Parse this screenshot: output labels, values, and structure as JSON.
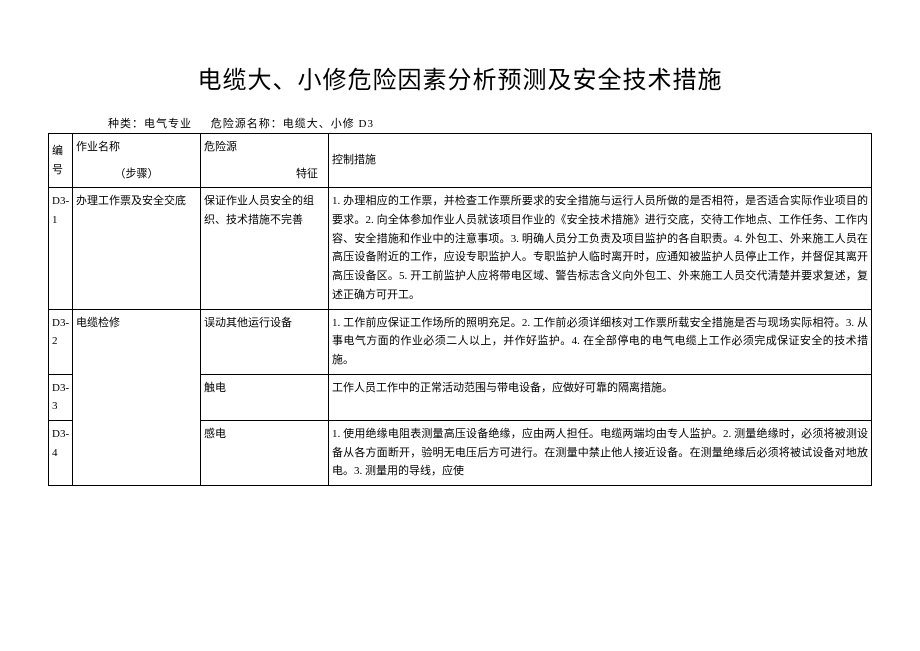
{
  "title": "电缆大、小修危险因素分析预测及安全技术措施",
  "meta_category_label": "种类：",
  "meta_category_value": "电气专业",
  "meta_source_label": "危险源名称：",
  "meta_source_value": "电缆大、小修 D3",
  "header": {
    "no": "编号",
    "task_top": "作业名称",
    "task_bottom": "（步骤）",
    "hazard_top": "危险源",
    "hazard_bottom": "特征",
    "ctrl": "控制措施"
  },
  "rows": {
    "r1": {
      "no": "D3-1",
      "task": "办理工作票及安全交底",
      "hazard": "保证作业人员安全的组织、技术措施不完善",
      "ctrl": "1. 办理相应的工作票，并检查工作票所要求的安全措施与运行人员所做的是否相符，是否适合实际作业项目的要求。2. 向全体参加作业人员就该项目作业的《安全技术措施》进行交底，交待工作地点、工作任务、工作内容、安全措施和作业中的注意事项。3. 明确人员分工负责及项目监护的各自职责。4. 外包工、外来施工人员在高压设备附近的工作，应设专职监护人。专职监护人临时离开时，应通知被监护人员停止工作，并督促其离开高压设备区。5. 开工前监护人应将带电区域、警告标志含义向外包工、外来施工人员交代清楚并要求复述，复述正确方可开工。"
    },
    "r2": {
      "no": "D3-2",
      "task": "电缆检修",
      "hazard": "误动其他运行设备",
      "ctrl": "1. 工作前应保证工作场所的照明充足。2. 工作前必须详细核对工作票所载安全措施是否与现场实际相符。3. 从事电气方面的作业必须二人以上，并作好监护。4. 在全部停电的电气电缆上工作必须完成保证安全的技术措施。"
    },
    "r3": {
      "no": "D3-3",
      "hazard": "触电",
      "ctrl": "工作人员工作中的正常活动范围与带电设备，应做好可靠的隔离措施。"
    },
    "r4": {
      "no": "D3-4",
      "hazard": "感电",
      "ctrl": "1. 使用绝缘电阻表测量高压设备绝缘，应由两人担任。电缆两端均由专人监护。2. 测量绝缘时，必须将被测设备从各方面断开，验明无电压后方可进行。在测量中禁止他人接近设备。在测量绝缘后必须将被试设备对地放电。3. 测量用的导线，应使"
    }
  }
}
